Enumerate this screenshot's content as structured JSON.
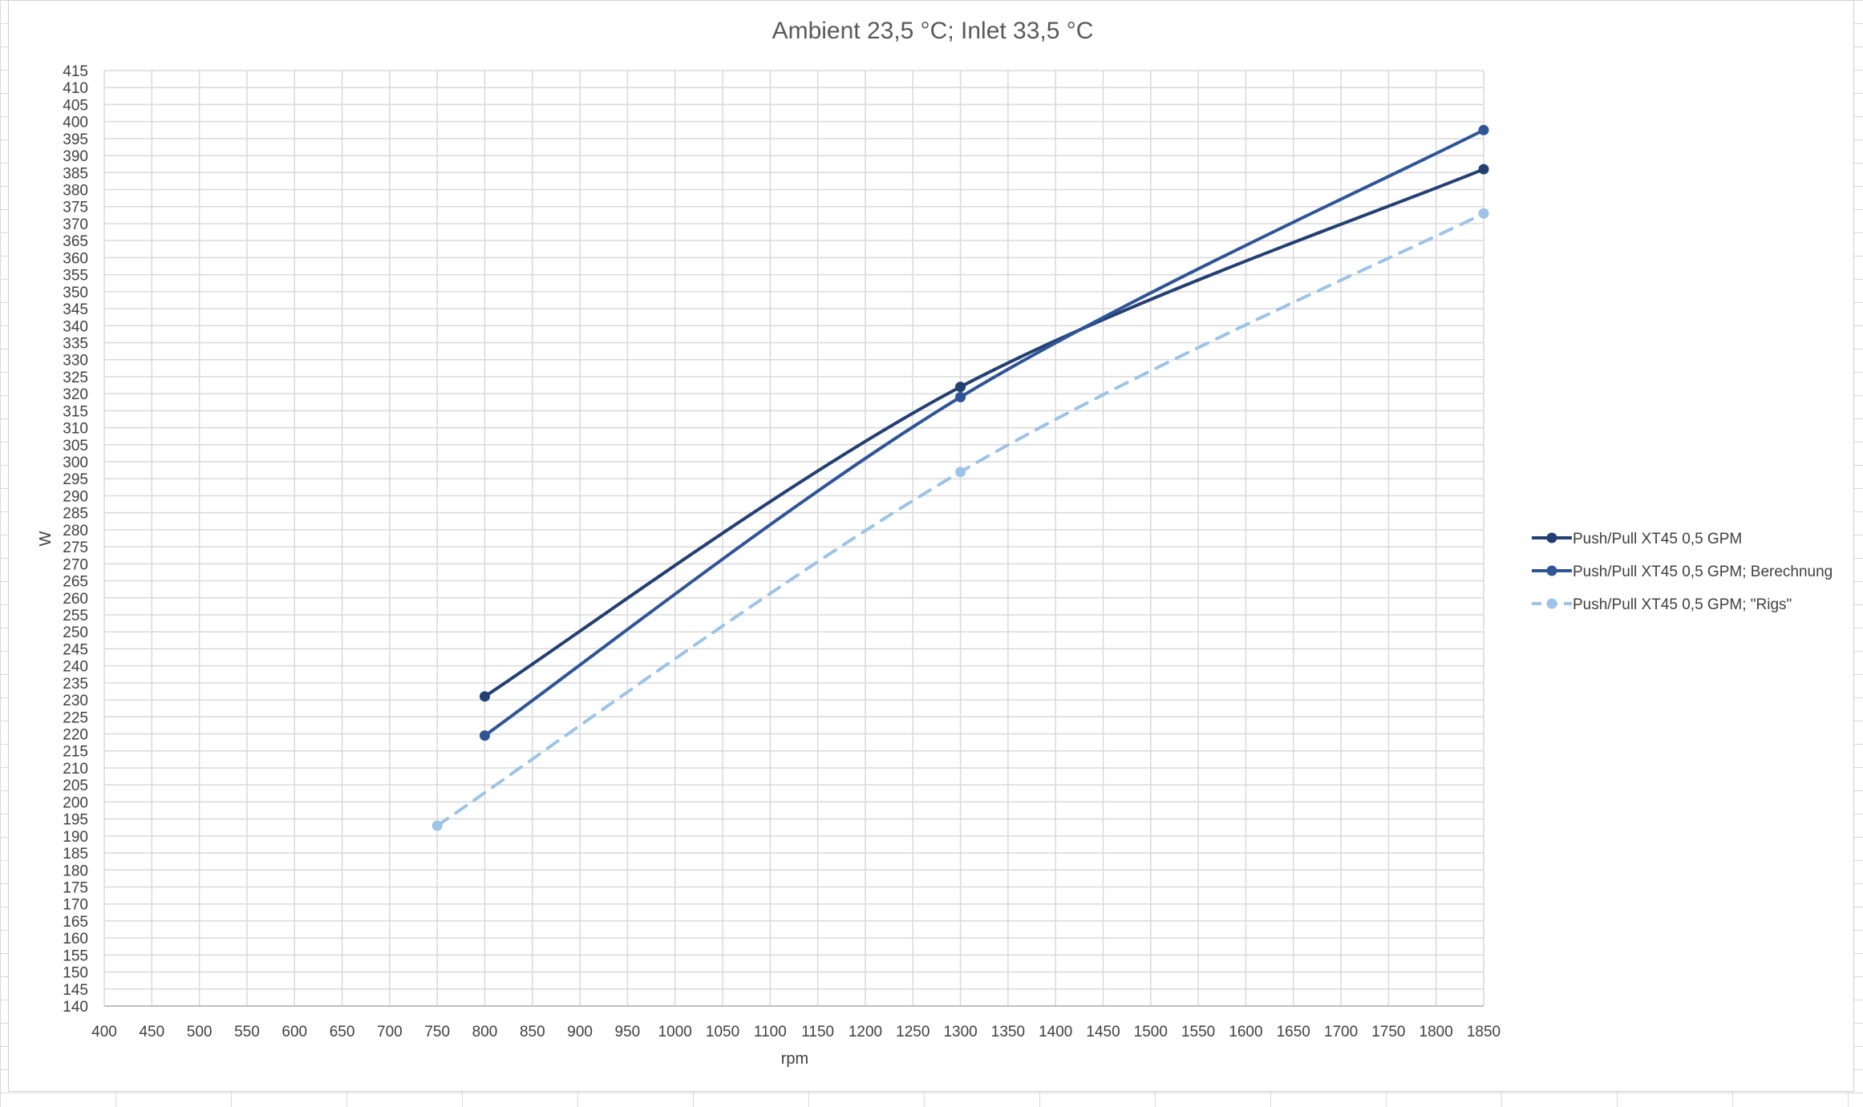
{
  "chart_data": {
    "type": "line",
    "title": "Ambient 23,5 °C; Inlet 33,5 °C",
    "xlabel": "rpm",
    "ylabel": "W",
    "xlim": [
      400,
      1850
    ],
    "ylim": [
      140,
      415
    ],
    "x_ticks": [
      "400",
      "450",
      "500",
      "550",
      "600",
      "650",
      "700",
      "750",
      "800",
      "850",
      "900",
      "950",
      "1000",
      "1050",
      "1100",
      "1150",
      "1200",
      "1250",
      "1300",
      "1350",
      "1400",
      "1450",
      "1500",
      "1550",
      "1600",
      "1650",
      "1700",
      "1750",
      "1800",
      "1850"
    ],
    "y_ticks": [
      "140",
      "145",
      "150",
      "155",
      "160",
      "165",
      "170",
      "175",
      "180",
      "185",
      "190",
      "195",
      "200",
      "205",
      "210",
      "215",
      "220",
      "225",
      "230",
      "235",
      "240",
      "245",
      "250",
      "255",
      "260",
      "265",
      "270",
      "275",
      "280",
      "285",
      "290",
      "295",
      "300",
      "305",
      "310",
      "315",
      "320",
      "325",
      "330",
      "335",
      "340",
      "345",
      "350",
      "355",
      "360",
      "365",
      "370",
      "375",
      "380",
      "385",
      "390",
      "395",
      "400",
      "405",
      "410",
      "415"
    ],
    "grid": true,
    "legend_position": "right",
    "series": [
      {
        "name": "Push/Pull XT45 0,5 GPM",
        "x": [
          800,
          1300,
          1850
        ],
        "y": [
          231,
          322,
          386
        ],
        "color": "#243f71",
        "dashed": false
      },
      {
        "name": "Push/Pull XT45 0,5 GPM; Berechnung",
        "x": [
          800,
          1300,
          1850
        ],
        "y": [
          219.5,
          319,
          397.5
        ],
        "color": "#2f5597",
        "dashed": false
      },
      {
        "name": "Push/Pull XT45 0,5 GPM; \"Rigs\"",
        "x": [
          750,
          1300,
          1850
        ],
        "y": [
          193,
          297,
          373
        ],
        "color": "#9dc3e6",
        "dashed": true
      }
    ]
  }
}
